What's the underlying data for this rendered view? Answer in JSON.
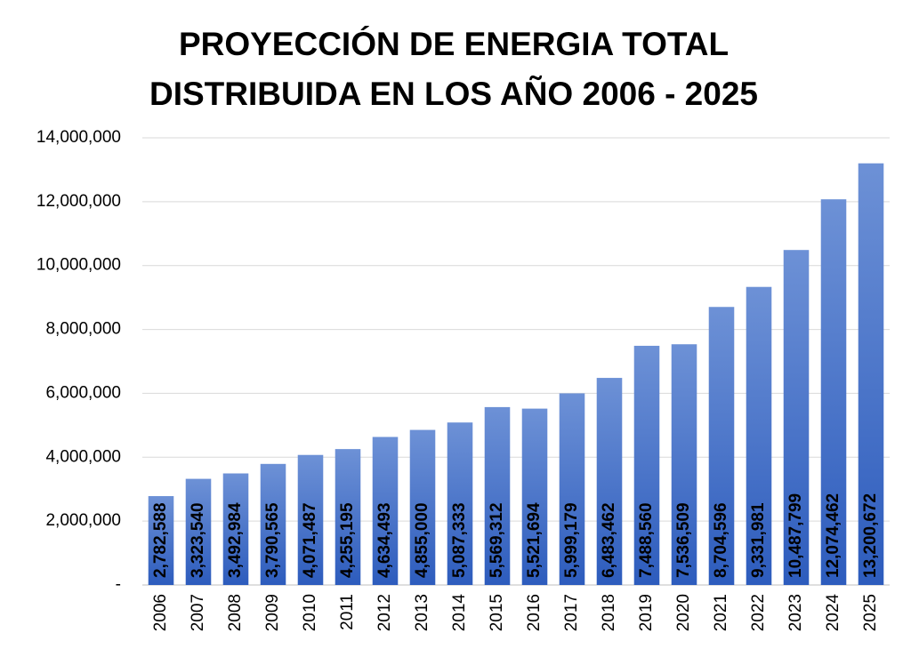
{
  "chart_data": {
    "type": "bar",
    "title": "PROYECCIÓN DE ENERGIA TOTAL DISTRIBUIDA EN LOS AÑO 2006 - 2025",
    "categories": [
      "2006",
      "2007",
      "2008",
      "2009",
      "2010",
      "2011",
      "2012",
      "2013",
      "2014",
      "2015",
      "2016",
      "2017",
      "2018",
      "2019",
      "2020",
      "2021",
      "2022",
      "2023",
      "2024",
      "2025"
    ],
    "values": [
      2782588,
      3323540,
      3492984,
      3790565,
      4071487,
      4255195,
      4634493,
      4855000,
      5087333,
      5569312,
      5521694,
      5999179,
      6483462,
      7488560,
      7536509,
      8704596,
      9331981,
      10487799,
      12074462,
      13200672
    ],
    "value_labels": [
      "2,782,588",
      "3,323,540",
      "3,492,984",
      "3,790,565",
      "4,071,487",
      "4,255,195",
      "4,634,493",
      "4,855,000",
      "5,087,333",
      "5,569,312",
      "5,521,694",
      "5,999,179",
      "6,483,462",
      "7,488,560",
      "7,536,509",
      "8,704,596",
      "9,331,981",
      "10,487,799",
      "12,074,462",
      "13,200,672"
    ],
    "color": "#4472c4",
    "ylim": [
      0,
      14000000
    ],
    "yticks": [
      {
        "value": 0,
        "label": "-"
      },
      {
        "value": 2000000,
        "label": "2,000,000"
      },
      {
        "value": 4000000,
        "label": "4,000,000"
      },
      {
        "value": 6000000,
        "label": "6,000,000"
      },
      {
        "value": 8000000,
        "label": "8,000,000"
      },
      {
        "value": 10000000,
        "label": "10,000,000"
      },
      {
        "value": 12000000,
        "label": "12,000,000"
      },
      {
        "value": 14000000,
        "label": "14,000,000"
      }
    ],
    "grid": true
  }
}
